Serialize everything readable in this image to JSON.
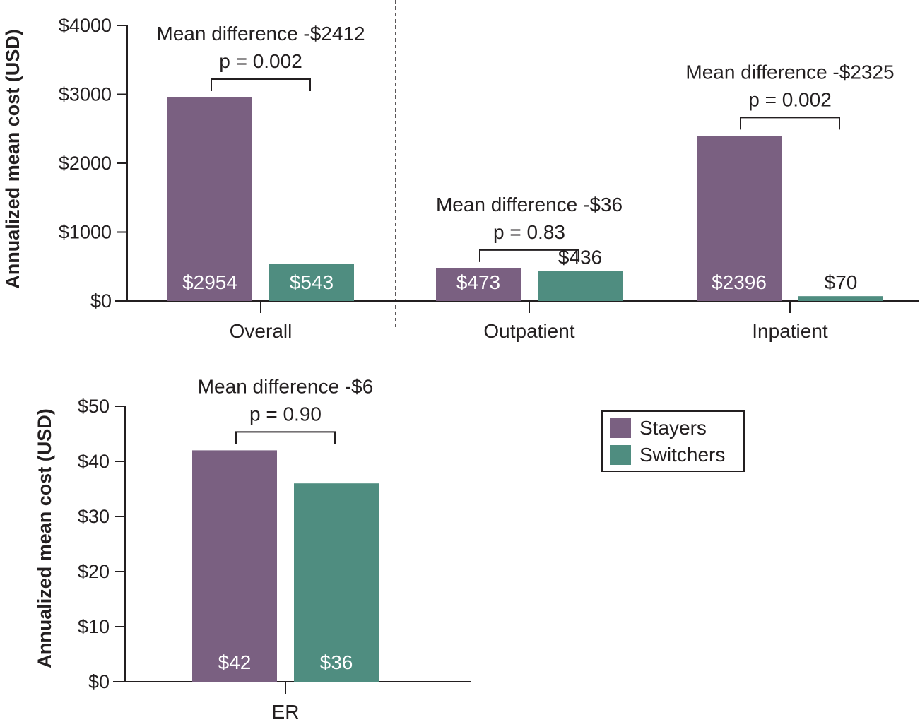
{
  "colors": {
    "stayers": "#7a6081",
    "switchers": "#4f8d80",
    "axis": "#231f20",
    "bar_label_light": "#ffffff",
    "bar_label_dark": "#231f20"
  },
  "legend": {
    "items": [
      {
        "label": "Stayers",
        "color": "#7a6081"
      },
      {
        "label": "Switchers",
        "color": "#4f8d80"
      }
    ]
  },
  "chart_data": [
    {
      "type": "bar",
      "ylabel": "Annualized mean cost (USD)",
      "ylim": [
        0,
        4000
      ],
      "yticks": [
        "$0",
        "$1000",
        "$2000",
        "$3000",
        "$4000"
      ],
      "ytick_values": [
        0,
        1000,
        2000,
        3000,
        4000
      ],
      "categories": [
        "Overall",
        "Outpatient",
        "Inpatient"
      ],
      "series": [
        {
          "name": "Stayers",
          "values": [
            2954,
            473,
            2396
          ],
          "labels": [
            "$2954",
            "$473",
            "$2396"
          ]
        },
        {
          "name": "Switchers",
          "values": [
            543,
            436,
            70
          ],
          "labels": [
            "$543",
            "$436",
            "$70"
          ]
        }
      ],
      "annotations": [
        {
          "category": "Overall",
          "line1": "Mean difference -$2412",
          "line2": "p = 0.002"
        },
        {
          "category": "Outpatient",
          "line1": "Mean difference -$36",
          "line2": "p = 0.83"
        },
        {
          "category": "Inpatient",
          "line1": "Mean difference -$2325",
          "line2": "p = 0.002"
        }
      ]
    },
    {
      "type": "bar",
      "ylabel": "Annualized mean cost (USD)",
      "ylim": [
        0,
        50
      ],
      "yticks": [
        "$0",
        "$10",
        "$20",
        "$30",
        "$40",
        "$50"
      ],
      "ytick_values": [
        0,
        10,
        20,
        30,
        40,
        50
      ],
      "categories": [
        "ER"
      ],
      "series": [
        {
          "name": "Stayers",
          "values": [
            42
          ],
          "labels": [
            "$42"
          ]
        },
        {
          "name": "Switchers",
          "values": [
            36
          ],
          "labels": [
            "$36"
          ]
        }
      ],
      "annotations": [
        {
          "category": "ER",
          "line1": "Mean difference -$6",
          "line2": "p = 0.90"
        }
      ]
    }
  ]
}
